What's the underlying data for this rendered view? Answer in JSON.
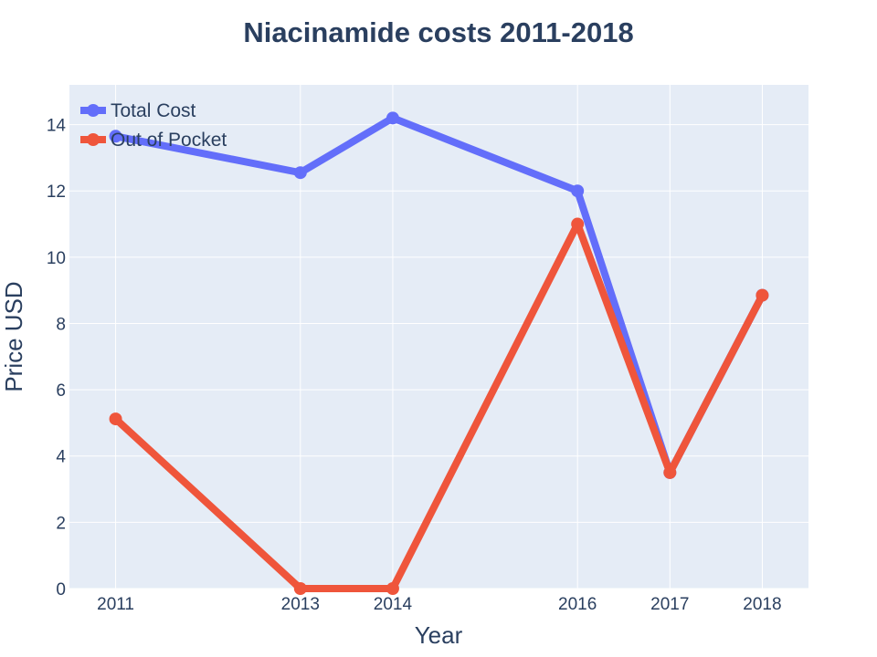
{
  "chart_data": {
    "type": "line",
    "title": "Niacinamide costs 2011-2018",
    "xlabel": "Year",
    "ylabel": "Price USD",
    "x": [
      2011,
      2013,
      2014,
      2016,
      2017,
      2018
    ],
    "x_ticks": [
      "2011",
      "2013",
      "2014",
      "2016",
      "2017",
      "2018"
    ],
    "xlim": [
      2010.5,
      2018.5
    ],
    "ylim": [
      0,
      15.2
    ],
    "y_ticks": [
      0,
      2,
      4,
      6,
      8,
      10,
      12,
      14
    ],
    "grid": true,
    "legend_position": "top-left",
    "background_color": "#e5ecf6",
    "series": [
      {
        "name": "Total Cost",
        "color": "#636efa",
        "values": [
          13.65,
          12.55,
          14.2,
          12.0,
          3.5,
          8.85
        ]
      },
      {
        "name": "Out of Pocket",
        "color": "#ef553b",
        "values": [
          5.12,
          0.0,
          0.0,
          11.0,
          3.5,
          8.85
        ]
      }
    ]
  }
}
